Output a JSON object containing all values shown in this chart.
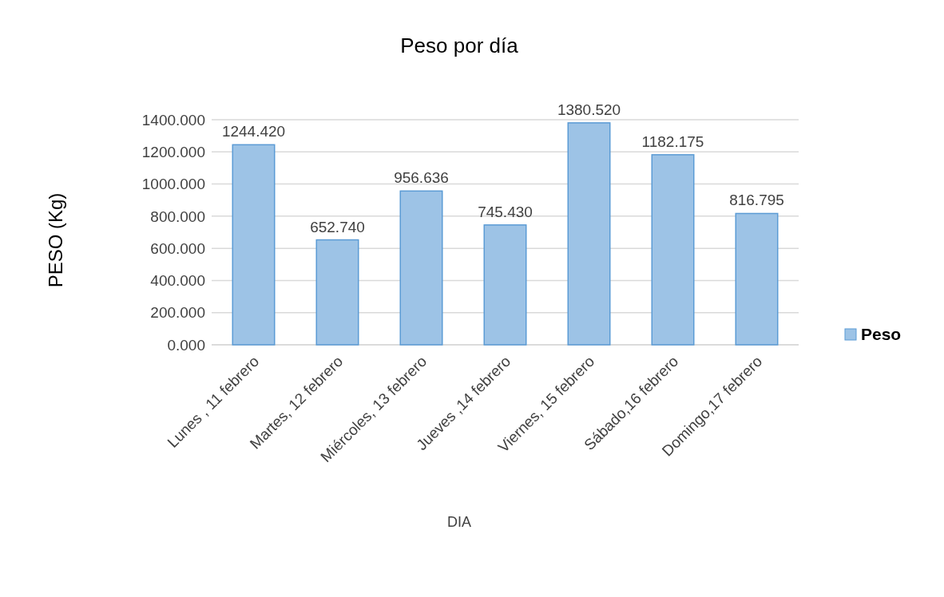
{
  "chart_data": {
    "type": "bar",
    "title": "Peso por día",
    "xlabel": "DIA",
    "ylabel": "PESO (Kg)",
    "categories": [
      "Lunes , 11 febrero",
      "Martes, 12 febrero",
      "Miércoles, 13 febrero",
      "Jueves ,14 febrero",
      "Viernes, 15 febrero",
      "Sábado,16 febrero",
      "Domingo,17 febrero"
    ],
    "series": [
      {
        "name": "Peso",
        "color": "#9dc3e6",
        "values": [
          1244.42,
          652.74,
          956.636,
          745.43,
          1380.52,
          1182.175,
          816.795
        ],
        "value_labels": [
          "1244.420",
          "652.740",
          "956.636",
          "745.430",
          "1380.520",
          "1182.175",
          "816.795"
        ]
      }
    ],
    "ylim": [
      0,
      1400
    ],
    "yticks": [
      {
        "value": 0,
        "label": "0.000"
      },
      {
        "value": 200,
        "label": "200.000"
      },
      {
        "value": 400,
        "label": "400.000"
      },
      {
        "value": 600,
        "label": "600.000"
      },
      {
        "value": 800,
        "label": "800.000"
      },
      {
        "value": 1000,
        "label": "1000.000"
      },
      {
        "value": 1200,
        "label": "1200.000"
      },
      {
        "value": 1400,
        "label": "1400.000"
      }
    ],
    "grid": "y",
    "legend": "right"
  }
}
